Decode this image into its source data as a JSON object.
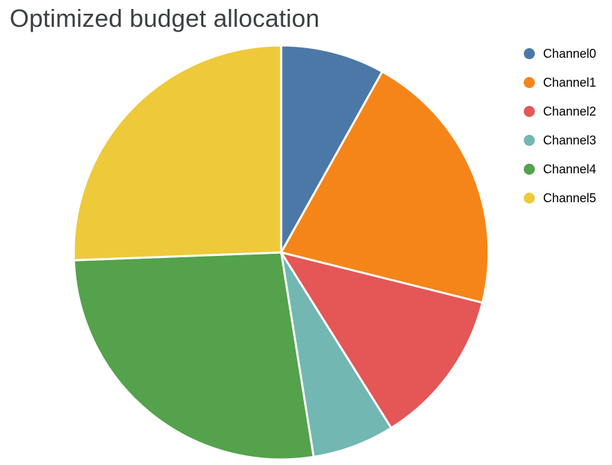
{
  "chart": {
    "title": "Optimized budget allocation"
  },
  "chart_data": {
    "type": "pie",
    "title": "Optimized budget allocation",
    "labels": [
      "Channel0",
      "Channel1",
      "Channel2",
      "Channel3",
      "Channel4",
      "Channel5"
    ],
    "values": [
      8.1,
      20.8,
      12.2,
      6.4,
      26.9,
      25.6
    ],
    "unit": "percent_of_budget",
    "colors": [
      "#4C78A8",
      "#F58518",
      "#E45756",
      "#72B7B2",
      "#54A24B",
      "#EECA3B"
    ],
    "start_angle_deg": 0,
    "direction": "clockwise",
    "slice_gap_color": "#ffffff",
    "legend_position": "right",
    "legend_title": ""
  },
  "legend": {
    "items": [
      {
        "label": "Channel0",
        "color": "#4C78A8"
      },
      {
        "label": "Channel1",
        "color": "#F58518"
      },
      {
        "label": "Channel2",
        "color": "#E45756"
      },
      {
        "label": "Channel3",
        "color": "#72B7B2"
      },
      {
        "label": "Channel4",
        "color": "#54A24B"
      },
      {
        "label": "Channel5",
        "color": "#EECA3B"
      }
    ]
  }
}
